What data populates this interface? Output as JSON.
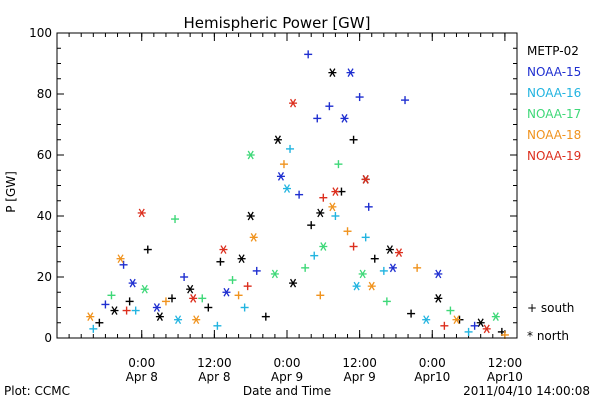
{
  "chart_data": {
    "type": "scatter",
    "title": "Hemispheric Power [GW]",
    "xlabel": "Date and Time",
    "ylabel": "P [GW]",
    "ylim": [
      0,
      100
    ],
    "yticks": [
      0,
      20,
      40,
      60,
      80,
      100
    ],
    "xlim": [
      "2011-04-07T10:00",
      "2011-04-10T14:00"
    ],
    "xticks": [
      {
        "time": "2011-04-08T00:00",
        "label_time": "0:00",
        "label_date": "Apr 8"
      },
      {
        "time": "2011-04-08T12:00",
        "label_time": "12:00",
        "label_date": "Apr 8"
      },
      {
        "time": "2011-04-09T00:00",
        "label_time": "0:00",
        "label_date": "Apr 9"
      },
      {
        "time": "2011-04-09T12:00",
        "label_time": "12:00",
        "label_date": "Apr 9"
      },
      {
        "time": "2011-04-10T00:00",
        "label_time": "0:00",
        "label_date": "Apr10"
      },
      {
        "time": "2011-04-10T12:00",
        "label_time": "12:00",
        "label_date": "Apr10"
      }
    ],
    "grid": false,
    "legend_position": "right",
    "marker_legend": [
      {
        "symbol": "+",
        "label": "south"
      },
      {
        "symbol": "*",
        "label": "north"
      }
    ],
    "series": [
      {
        "name": "METP-02",
        "color": "#000000",
        "points": [
          {
            "x": "2011-04-07T17:00",
            "y": 5,
            "hemi": "south"
          },
          {
            "x": "2011-04-07T19:30",
            "y": 9,
            "hemi": "north"
          },
          {
            "x": "2011-04-07T22:00",
            "y": 12,
            "hemi": "south"
          },
          {
            "x": "2011-04-08T01:00",
            "y": 29,
            "hemi": "south"
          },
          {
            "x": "2011-04-08T03:00",
            "y": 7,
            "hemi": "north"
          },
          {
            "x": "2011-04-08T05:00",
            "y": 13,
            "hemi": "south"
          },
          {
            "x": "2011-04-08T08:00",
            "y": 16,
            "hemi": "north"
          },
          {
            "x": "2011-04-08T11:00",
            "y": 10,
            "hemi": "south"
          },
          {
            "x": "2011-04-08T13:00",
            "y": 25,
            "hemi": "south"
          },
          {
            "x": "2011-04-08T16:30",
            "y": 26,
            "hemi": "north"
          },
          {
            "x": "2011-04-08T18:00",
            "y": 40,
            "hemi": "north"
          },
          {
            "x": "2011-04-08T20:30",
            "y": 7,
            "hemi": "south"
          },
          {
            "x": "2011-04-08T22:30",
            "y": 65,
            "hemi": "north"
          },
          {
            "x": "2011-04-09T01:00",
            "y": 18,
            "hemi": "north"
          },
          {
            "x": "2011-04-09T04:00",
            "y": 37,
            "hemi": "south"
          },
          {
            "x": "2011-04-09T05:30",
            "y": 41,
            "hemi": "north"
          },
          {
            "x": "2011-04-09T07:30",
            "y": 87,
            "hemi": "north"
          },
          {
            "x": "2011-04-09T09:00",
            "y": 48,
            "hemi": "south"
          },
          {
            "x": "2011-04-09T11:00",
            "y": 65,
            "hemi": "south"
          },
          {
            "x": "2011-04-09T13:00",
            "y": 52,
            "hemi": "north"
          },
          {
            "x": "2011-04-09T14:30",
            "y": 26,
            "hemi": "south"
          },
          {
            "x": "2011-04-09T17:00",
            "y": 29,
            "hemi": "north"
          },
          {
            "x": "2011-04-09T20:30",
            "y": 8,
            "hemi": "south"
          },
          {
            "x": "2011-04-10T01:00",
            "y": 13,
            "hemi": "north"
          },
          {
            "x": "2011-04-10T04:30",
            "y": 6,
            "hemi": "south"
          },
          {
            "x": "2011-04-10T08:00",
            "y": 5,
            "hemi": "north"
          },
          {
            "x": "2011-04-10T11:30",
            "y": 2,
            "hemi": "south"
          }
        ]
      },
      {
        "name": "NOAA-15",
        "color": "#1f2fd0",
        "points": [
          {
            "x": "2011-04-07T18:00",
            "y": 11,
            "hemi": "south"
          },
          {
            "x": "2011-04-07T21:00",
            "y": 24,
            "hemi": "south"
          },
          {
            "x": "2011-04-07T22:30",
            "y": 18,
            "hemi": "north"
          },
          {
            "x": "2011-04-08T02:30",
            "y": 10,
            "hemi": "north"
          },
          {
            "x": "2011-04-08T07:00",
            "y": 20,
            "hemi": "south"
          },
          {
            "x": "2011-04-08T14:00",
            "y": 15,
            "hemi": "north"
          },
          {
            "x": "2011-04-08T19:00",
            "y": 22,
            "hemi": "south"
          },
          {
            "x": "2011-04-08T23:00",
            "y": 53,
            "hemi": "north"
          },
          {
            "x": "2011-04-09T02:00",
            "y": 47,
            "hemi": "south"
          },
          {
            "x": "2011-04-09T03:30",
            "y": 93,
            "hemi": "south"
          },
          {
            "x": "2011-04-09T05:00",
            "y": 72,
            "hemi": "south"
          },
          {
            "x": "2011-04-09T07:00",
            "y": 76,
            "hemi": "south"
          },
          {
            "x": "2011-04-09T09:30",
            "y": 72,
            "hemi": "north"
          },
          {
            "x": "2011-04-09T10:30",
            "y": 87,
            "hemi": "north"
          },
          {
            "x": "2011-04-09T12:00",
            "y": 79,
            "hemi": "south"
          },
          {
            "x": "2011-04-09T13:30",
            "y": 43,
            "hemi": "south"
          },
          {
            "x": "2011-04-09T17:30",
            "y": 23,
            "hemi": "north"
          },
          {
            "x": "2011-04-09T19:30",
            "y": 78,
            "hemi": "south"
          },
          {
            "x": "2011-04-10T01:00",
            "y": 21,
            "hemi": "north"
          },
          {
            "x": "2011-04-10T07:00",
            "y": 4,
            "hemi": "south"
          }
        ]
      },
      {
        "name": "NOAA-16",
        "color": "#22b4e0",
        "points": [
          {
            "x": "2011-04-07T16:00",
            "y": 3,
            "hemi": "south"
          },
          {
            "x": "2011-04-07T23:00",
            "y": 9,
            "hemi": "south"
          },
          {
            "x": "2011-04-08T06:00",
            "y": 6,
            "hemi": "north"
          },
          {
            "x": "2011-04-08T12:30",
            "y": 4,
            "hemi": "south"
          },
          {
            "x": "2011-04-08T17:00",
            "y": 10,
            "hemi": "south"
          },
          {
            "x": "2011-04-09T00:00",
            "y": 49,
            "hemi": "north"
          },
          {
            "x": "2011-04-09T00:30",
            "y": 62,
            "hemi": "south"
          },
          {
            "x": "2011-04-09T04:30",
            "y": 27,
            "hemi": "south"
          },
          {
            "x": "2011-04-09T08:00",
            "y": 40,
            "hemi": "south"
          },
          {
            "x": "2011-04-09T11:30",
            "y": 17,
            "hemi": "north"
          },
          {
            "x": "2011-04-09T13:00",
            "y": 33,
            "hemi": "south"
          },
          {
            "x": "2011-04-09T16:00",
            "y": 22,
            "hemi": "south"
          },
          {
            "x": "2011-04-09T23:00",
            "y": 6,
            "hemi": "north"
          },
          {
            "x": "2011-04-10T06:00",
            "y": 2,
            "hemi": "south"
          }
        ]
      },
      {
        "name": "NOAA-17",
        "color": "#3ed878",
        "points": [
          {
            "x": "2011-04-07T19:00",
            "y": 14,
            "hemi": "south"
          },
          {
            "x": "2011-04-08T00:30",
            "y": 16,
            "hemi": "north"
          },
          {
            "x": "2011-04-08T05:30",
            "y": 39,
            "hemi": "south"
          },
          {
            "x": "2011-04-08T10:00",
            "y": 13,
            "hemi": "south"
          },
          {
            "x": "2011-04-08T15:00",
            "y": 19,
            "hemi": "south"
          },
          {
            "x": "2011-04-08T18:00",
            "y": 60,
            "hemi": "north"
          },
          {
            "x": "2011-04-08T22:00",
            "y": 21,
            "hemi": "north"
          },
          {
            "x": "2011-04-09T03:00",
            "y": 23,
            "hemi": "south"
          },
          {
            "x": "2011-04-09T06:00",
            "y": 30,
            "hemi": "north"
          },
          {
            "x": "2011-04-09T08:30",
            "y": 57,
            "hemi": "south"
          },
          {
            "x": "2011-04-09T12:30",
            "y": 21,
            "hemi": "north"
          },
          {
            "x": "2011-04-09T16:30",
            "y": 12,
            "hemi": "south"
          },
          {
            "x": "2011-04-10T03:00",
            "y": 9,
            "hemi": "south"
          },
          {
            "x": "2011-04-10T10:30",
            "y": 7,
            "hemi": "north"
          }
        ]
      },
      {
        "name": "NOAA-18",
        "color": "#f0931e",
        "points": [
          {
            "x": "2011-04-07T15:30",
            "y": 7,
            "hemi": "north"
          },
          {
            "x": "2011-04-07T20:30",
            "y": 26,
            "hemi": "north"
          },
          {
            "x": "2011-04-08T04:00",
            "y": 12,
            "hemi": "south"
          },
          {
            "x": "2011-04-08T09:00",
            "y": 6,
            "hemi": "north"
          },
          {
            "x": "2011-04-08T16:00",
            "y": 14,
            "hemi": "south"
          },
          {
            "x": "2011-04-08T18:30",
            "y": 33,
            "hemi": "north"
          },
          {
            "x": "2011-04-08T23:30",
            "y": 57,
            "hemi": "south"
          },
          {
            "x": "2011-04-09T05:30",
            "y": 14,
            "hemi": "south"
          },
          {
            "x": "2011-04-09T07:30",
            "y": 43,
            "hemi": "north"
          },
          {
            "x": "2011-04-09T10:00",
            "y": 35,
            "hemi": "south"
          },
          {
            "x": "2011-04-09T14:00",
            "y": 17,
            "hemi": "north"
          },
          {
            "x": "2011-04-09T21:30",
            "y": 23,
            "hemi": "south"
          },
          {
            "x": "2011-04-10T04:00",
            "y": 6,
            "hemi": "north"
          },
          {
            "x": "2011-04-10T12:00",
            "y": 1,
            "hemi": "south"
          }
        ]
      },
      {
        "name": "NOAA-19",
        "color": "#dc2f1e",
        "points": [
          {
            "x": "2011-04-07T21:30",
            "y": 9,
            "hemi": "south"
          },
          {
            "x": "2011-04-08T00:00",
            "y": 41,
            "hemi": "north"
          },
          {
            "x": "2011-04-08T08:30",
            "y": 13,
            "hemi": "north"
          },
          {
            "x": "2011-04-08T13:30",
            "y": 29,
            "hemi": "north"
          },
          {
            "x": "2011-04-08T17:30",
            "y": 17,
            "hemi": "south"
          },
          {
            "x": "2011-04-09T01:00",
            "y": 77,
            "hemi": "north"
          },
          {
            "x": "2011-04-09T06:00",
            "y": 46,
            "hemi": "south"
          },
          {
            "x": "2011-04-09T08:00",
            "y": 48,
            "hemi": "north"
          },
          {
            "x": "2011-04-09T11:00",
            "y": 30,
            "hemi": "south"
          },
          {
            "x": "2011-04-09T13:00",
            "y": 52,
            "hemi": "north"
          },
          {
            "x": "2011-04-09T18:30",
            "y": 28,
            "hemi": "north"
          },
          {
            "x": "2011-04-10T02:00",
            "y": 4,
            "hemi": "south"
          },
          {
            "x": "2011-04-10T09:00",
            "y": 3,
            "hemi": "north"
          }
        ]
      }
    ]
  },
  "footer": {
    "plot_credit": "Plot: CCMC",
    "timestamp": "2011/04/10 14:00:08"
  }
}
